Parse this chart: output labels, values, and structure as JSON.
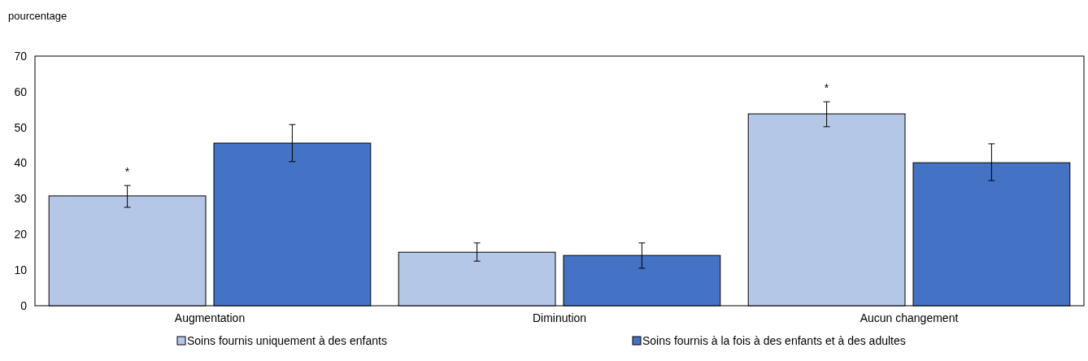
{
  "chart_data": {
    "type": "bar",
    "ylabel": "pourcentage",
    "categories": [
      "Augmentation",
      "Diminution",
      "Aucun changement"
    ],
    "series": [
      {
        "name": "Soins fournis uniquement à des enfants",
        "color": "#b4c7e7",
        "values": [
          30.8,
          15.0,
          53.8
        ],
        "value_labels": [
          "*",
          null,
          "*"
        ],
        "errors": [
          [
            27.6,
            33.7
          ],
          [
            12.5,
            17.6
          ],
          [
            50.2,
            57.2
          ]
        ]
      },
      {
        "name": "Soins fournis à la fois à des enfants et à des adultes",
        "color": "#4472c4",
        "values": [
          45.6,
          14.1,
          40.1
        ],
        "errors": [
          [
            40.4,
            50.8
          ],
          [
            10.5,
            17.6
          ],
          [
            35.1,
            45.4
          ]
        ]
      }
    ],
    "ylim": [
      0,
      70
    ],
    "yticks": [
      0,
      10,
      20,
      30,
      40,
      50,
      60,
      70
    ],
    "grid": false,
    "legend": "bottom"
  }
}
